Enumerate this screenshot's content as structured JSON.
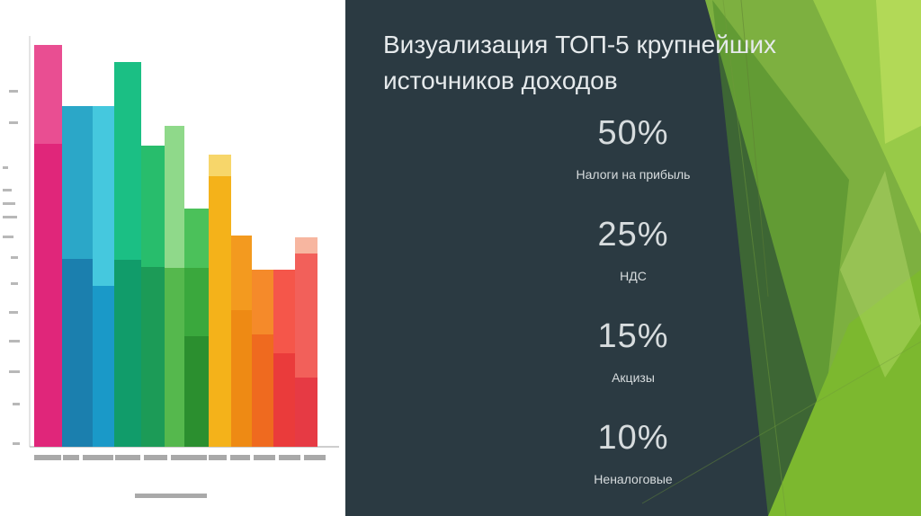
{
  "slide": {
    "title": "Визуализация ТОП-5 крупнейших источников доходов"
  },
  "stats": [
    {
      "value": "50%",
      "label": "Налоги на прибыль"
    },
    {
      "value": "25%",
      "label": "НДС"
    },
    {
      "value": "15%",
      "label": "Акцизы"
    },
    {
      "value": "10%",
      "label": "Неналоговые"
    }
  ],
  "colors": {
    "panel_bg": "#2b3a42",
    "text": "#d7dcde",
    "accent_green": "#7cb82f"
  }
}
